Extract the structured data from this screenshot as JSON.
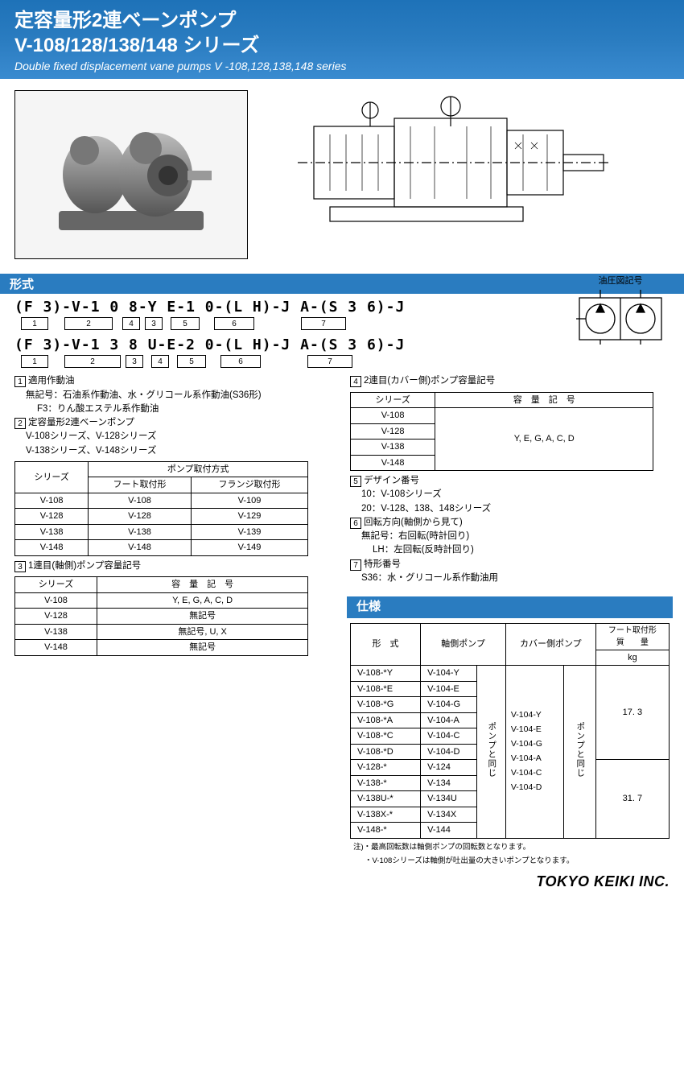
{
  "header": {
    "title_jp_l1": "定容量形2連ベーンポンプ",
    "title_jp_l2": "V-108/128/138/148 シリーズ",
    "title_en": "Double fixed displacement vane pumps  V -108,128,138,148 series"
  },
  "hydraulic_label": "油圧図記号",
  "section_model": "形式",
  "section_spec": "仕様",
  "model_lines": {
    "l1": "(F 3)-V-1 0 8-Y E-1 0-(L H)-J A-(S 3 6)-J",
    "l2": "(F 3)-V-1 3 8 U-E-2 0-(L H)-J A-(S 3 6)-J"
  },
  "num_labels": [
    "1",
    "2",
    "4",
    "3",
    "5",
    "6",
    "7"
  ],
  "num_labels2": [
    "1",
    "2",
    "3",
    "4",
    "5",
    "6",
    "7"
  ],
  "legend": {
    "n1_title": "適用作動油",
    "n1_l1": "無記号：石油系作動油、水・グリコール系作動油(S36形)",
    "n1_l2": "F3：りん酸エステル系作動油",
    "n2_title": "定容量形2連ベーンポンプ",
    "n2_l1": "V-108シリーズ、V-128シリーズ",
    "n2_l2": "V-138シリーズ、V-148シリーズ",
    "n3_title": "1連目(軸側)ポンプ容量記号",
    "n4_title": "2連目(カバー側)ポンプ容量記号",
    "n5_title": "デザイン番号",
    "n5_l1": "10：V-108シリーズ",
    "n5_l2": "20：V-128、138、148シリーズ",
    "n6_title": "回転方向(軸側から見て)",
    "n6_l1": "無記号：右回転(時計回り)",
    "n6_l2": "LH：左回転(反時計回り)",
    "n7_title": "特形番号",
    "n7_l1": "S36：水・グリコール系作動油用"
  },
  "mount_table": {
    "h_series": "シリーズ",
    "h_mount": "ポンプ取付方式",
    "h_foot": "フート取付形",
    "h_flange": "フランジ取付形",
    "rows": [
      [
        "V-108",
        "V-108",
        "V-109"
      ],
      [
        "V-128",
        "V-128",
        "V-129"
      ],
      [
        "V-138",
        "V-138",
        "V-139"
      ],
      [
        "V-148",
        "V-148",
        "V-149"
      ]
    ]
  },
  "cap1_table": {
    "h_series": "シリーズ",
    "h_code": "容　量　記　号",
    "rows": [
      [
        "V-108",
        "Y, E, G, A, C, D"
      ],
      [
        "V-128",
        "無記号"
      ],
      [
        "V-138",
        "無記号, U, X"
      ],
      [
        "V-148",
        "無記号"
      ]
    ]
  },
  "cap2_table": {
    "h_series": "シリーズ",
    "h_code": "容　量　記　号",
    "codes": "Y, E, G, A, C, D",
    "series": [
      "V-108",
      "V-128",
      "V-138",
      "V-148"
    ]
  },
  "spec_table": {
    "h_model": "形　式",
    "h_shaft": "軸側ポンプ",
    "h_cover": "カバー側ポンプ",
    "h_mass": "フート取付形\n質　　量",
    "h_kg": "kg",
    "same_as_pump": "ポンプと同じ",
    "rows_top": [
      [
        "V-108-*Y",
        "V-104-Y"
      ],
      [
        "V-108-*E",
        "V-104-E"
      ],
      [
        "V-108-*G",
        "V-104-G"
      ],
      [
        "V-108-*A",
        "V-104-A"
      ],
      [
        "V-108-*C",
        "V-104-C"
      ],
      [
        "V-108-*D",
        "V-104-D"
      ]
    ],
    "rows_bot": [
      [
        "V-128-*",
        "V-124"
      ],
      [
        "V-138-*",
        "V-134"
      ],
      [
        "V-138U-*",
        "V-134U"
      ],
      [
        "V-138X-*",
        "V-134X"
      ],
      [
        "V-148-*",
        "V-144"
      ]
    ],
    "cover_list": [
      "V-104-Y",
      "V-104-E",
      "V-104-G",
      "V-104-A",
      "V-104-C",
      "V-104-D"
    ],
    "mass_top": "17. 3",
    "mass_bot": "31. 7"
  },
  "notes": {
    "n1": "注)・最高回転数は軸側ポンプの回転数となります。",
    "n2": "・V-108シリーズは軸側が吐出量の大きいポンプとなります。"
  },
  "footer": "TOKYO KEIKI INC."
}
